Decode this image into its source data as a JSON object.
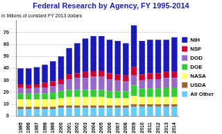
{
  "chart_data": {
    "type": "bar",
    "title": "Federal Research by Agency, FY 1995-2014",
    "ylabel": "in billions of constant FY 2013 dollars",
    "categories": [
      "1995",
      "1996",
      "1997",
      "1998",
      "1999",
      "2000",
      "2001",
      "2002",
      "2003",
      "2004",
      "2005",
      "2006",
      "2007",
      "2008",
      "2009",
      "2010",
      "2011",
      "2012",
      "2013",
      "2014"
    ],
    "series": [
      {
        "name": "All Other",
        "color": "#66ccff",
        "values": [
          6,
          6,
          6,
          6,
          6,
          7,
          7,
          7,
          7,
          7,
          7,
          7,
          7,
          7,
          8,
          8,
          8,
          8,
          8,
          8
        ]
      },
      {
        "name": "USDA",
        "color": "#996633",
        "values": [
          2,
          2,
          2,
          2,
          2,
          2,
          2,
          2,
          2,
          2,
          2,
          2,
          2,
          2,
          2,
          2,
          2,
          2,
          2,
          2
        ]
      },
      {
        "name": "NASA",
        "color": "#ffff66",
        "values": [
          6,
          6,
          6,
          6,
          6,
          6,
          7,
          7,
          7,
          7,
          7,
          6,
          6,
          6,
          7,
          6,
          6,
          6,
          6,
          6
        ]
      },
      {
        "name": "DOE",
        "color": "#33cc33",
        "values": [
          5,
          5,
          5,
          5,
          6,
          6,
          6,
          6,
          6,
          6,
          6,
          6,
          6,
          6,
          9,
          7,
          7,
          7,
          8,
          8
        ]
      },
      {
        "name": "DOD",
        "color": "#9966cc",
        "values": [
          5,
          4,
          5,
          5,
          5,
          6,
          9,
          10,
          10,
          11,
          11,
          10,
          9,
          8,
          8,
          7,
          8,
          8,
          8,
          8
        ]
      },
      {
        "name": "NSF",
        "color": "#cc0033",
        "values": [
          3,
          3,
          3,
          4,
          4,
          4,
          4,
          4,
          5,
          5,
          5,
          5,
          5,
          5,
          7,
          5,
          5,
          5,
          5,
          5
        ]
      },
      {
        "name": "NIH",
        "color": "#1a1ab8",
        "values": [
          13,
          14,
          14,
          15,
          17,
          19,
          22,
          25,
          28,
          29,
          29,
          28,
          28,
          27,
          35,
          28,
          28,
          28,
          27,
          29
        ]
      }
    ],
    "ylim": [
      0,
      80
    ],
    "yticks": [
      0,
      10,
      20,
      30,
      40,
      50,
      60,
      70
    ],
    "stacked": true,
    "grid": true,
    "legend": "right"
  }
}
